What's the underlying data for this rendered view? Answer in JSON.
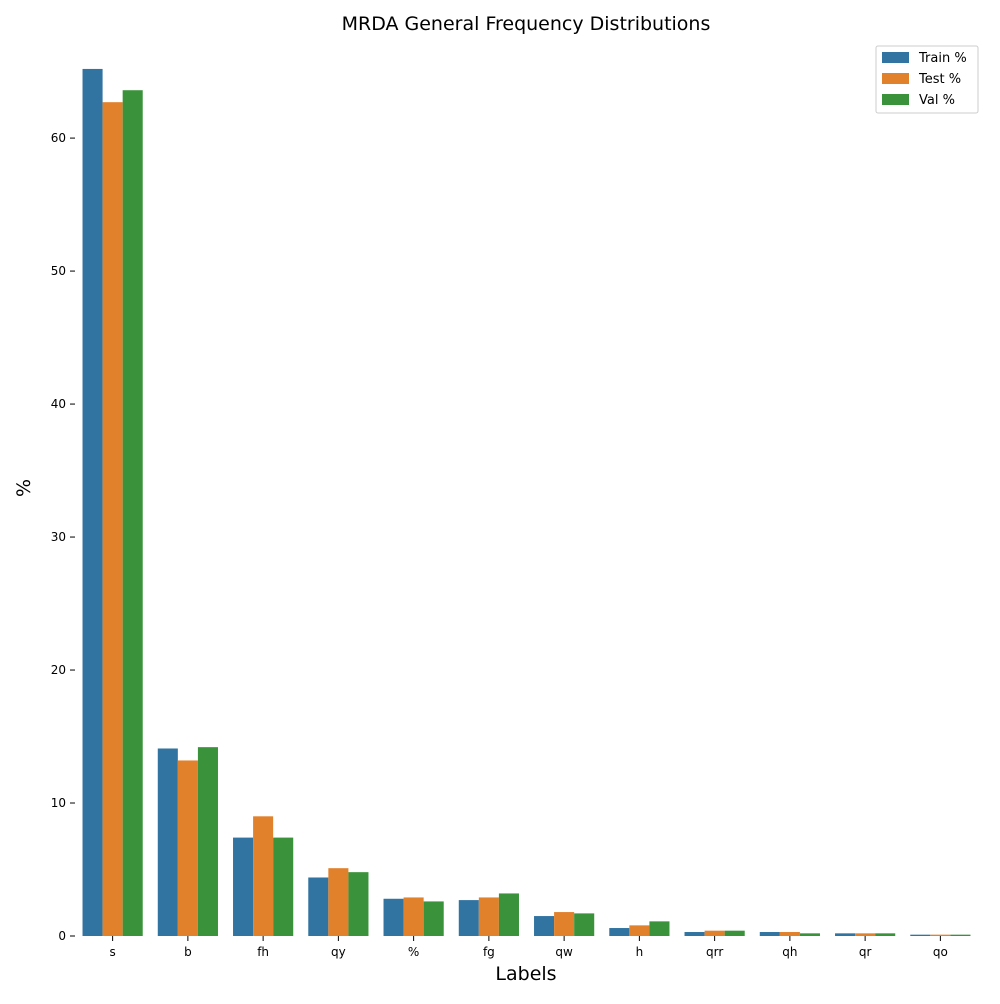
{
  "chart_data": {
    "type": "bar",
    "title": "MRDA General Frequency Distributions",
    "xlabel": "Labels",
    "ylabel": "%",
    "ylim": [
      0,
      67
    ],
    "yticks": [
      "0",
      "10",
      "20",
      "30",
      "40",
      "50",
      "60"
    ],
    "categories": [
      "s",
      "b",
      "fh",
      "qy",
      "%",
      "fg",
      "qw",
      "h",
      "qrr",
      "qh",
      "qr",
      "qo"
    ],
    "series": [
      {
        "name": "Train %",
        "color": "#3274a1",
        "values": [
          65.2,
          14.1,
          7.4,
          4.4,
          2.8,
          2.7,
          1.5,
          0.6,
          0.3,
          0.3,
          0.2,
          0.1
        ]
      },
      {
        "name": "Test %",
        "color": "#e1812c",
        "values": [
          62.7,
          13.2,
          9.0,
          5.1,
          2.9,
          2.9,
          1.8,
          0.8,
          0.4,
          0.3,
          0.2,
          0.1
        ]
      },
      {
        "name": "Val %",
        "color": "#3a923a",
        "values": [
          63.6,
          14.2,
          7.4,
          4.8,
          2.6,
          3.2,
          1.7,
          1.1,
          0.4,
          0.2,
          0.2,
          0.1
        ]
      }
    ],
    "legend_position": "top-right",
    "grid": false
  }
}
